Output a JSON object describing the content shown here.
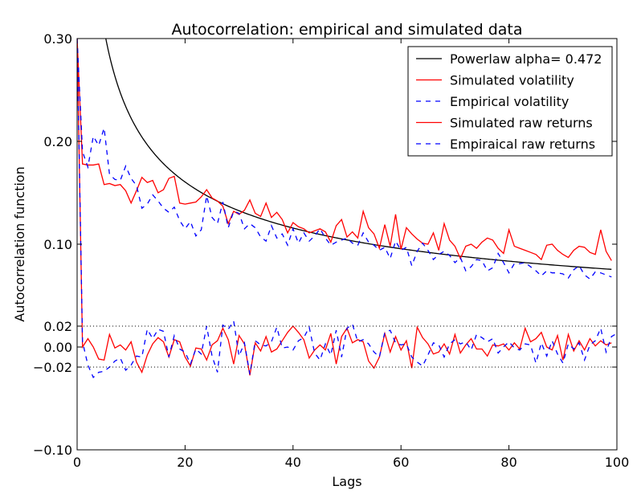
{
  "chart_data": {
    "type": "line",
    "title": "Autocorrelation: empirical and simulated data",
    "xlabel": "Lags",
    "ylabel": "Autocorrelation function",
    "xlim": [
      0,
      100
    ],
    "ylim": [
      -0.1,
      0.3
    ],
    "xticks": [
      0,
      20,
      40,
      60,
      80,
      100
    ],
    "xtick_labels": [
      "0",
      "20",
      "40",
      "60",
      "80",
      "100"
    ],
    "yticks": [
      -0.1,
      -0.02,
      0.0,
      0.02,
      0.1,
      0.2,
      0.3
    ],
    "ytick_labels": [
      "−0.10",
      "−0.02",
      "0.00",
      "0.02",
      "0.10",
      "0.20",
      "0.30"
    ],
    "legend_position": "top-right",
    "reference_lines": [
      0.02,
      -0.02
    ],
    "powerlaw": {
      "alpha": 0.472,
      "coef": 0.66
    },
    "series": [
      {
        "name": "Powerlaw alpha= 0.472",
        "kind": "powerlaw",
        "color": "#000000",
        "dash": "solid"
      },
      {
        "name": "Simulated volatility",
        "color": "#ff0000",
        "dash": "solid",
        "x_start": 0,
        "values": [
          0.3,
          0.178,
          0.177,
          0.177,
          0.178,
          0.158,
          0.159,
          0.157,
          0.158,
          0.152,
          0.14,
          0.152,
          0.165,
          0.16,
          0.162,
          0.15,
          0.153,
          0.164,
          0.166,
          0.14,
          0.139,
          0.14,
          0.141,
          0.146,
          0.153,
          0.145,
          0.142,
          0.137,
          0.12,
          0.132,
          0.129,
          0.133,
          0.143,
          0.13,
          0.127,
          0.14,
          0.126,
          0.131,
          0.124,
          0.111,
          0.121,
          0.117,
          0.115,
          0.111,
          0.113,
          0.115,
          0.112,
          0.102,
          0.118,
          0.124,
          0.107,
          0.112,
          0.106,
          0.132,
          0.116,
          0.11,
          0.096,
          0.119,
          0.098,
          0.129,
          0.095,
          0.116,
          0.11,
          0.105,
          0.101,
          0.1,
          0.111,
          0.094,
          0.12,
          0.104,
          0.098,
          0.086,
          0.098,
          0.1,
          0.096,
          0.102,
          0.106,
          0.104,
          0.096,
          0.091,
          0.114,
          0.098,
          0.096,
          0.094,
          0.092,
          0.09,
          0.085,
          0.099,
          0.1,
          0.094,
          0.09,
          0.087,
          0.094,
          0.098,
          0.097,
          0.092,
          0.09,
          0.114,
          0.093,
          0.084
        ]
      },
      {
        "name": "Empirical volatility",
        "color": "#0000ff",
        "dash": "dashed",
        "x_start": 0,
        "values": [
          0.3,
          0.19,
          0.175,
          0.205,
          0.196,
          0.213,
          0.168,
          0.163,
          0.162,
          0.176,
          0.164,
          0.157,
          0.135,
          0.139,
          0.148,
          0.142,
          0.135,
          0.131,
          0.136,
          0.123,
          0.115,
          0.122,
          0.108,
          0.114,
          0.147,
          0.126,
          0.12,
          0.141,
          0.116,
          0.132,
          0.13,
          0.115,
          0.12,
          0.116,
          0.107,
          0.103,
          0.118,
          0.106,
          0.11,
          0.099,
          0.115,
          0.101,
          0.111,
          0.103,
          0.108,
          0.115,
          0.106,
          0.099,
          0.102,
          0.104,
          0.106,
          0.101,
          0.099,
          0.111,
          0.102,
          0.099,
          0.094,
          0.097,
          0.086,
          0.103,
          0.094,
          0.097,
          0.079,
          0.093,
          0.101,
          0.094,
          0.085,
          0.09,
          0.093,
          0.089,
          0.082,
          0.087,
          0.074,
          0.078,
          0.085,
          0.084,
          0.074,
          0.077,
          0.091,
          0.082,
          0.072,
          0.081,
          0.081,
          0.082,
          0.078,
          0.074,
          0.069,
          0.074,
          0.072,
          0.072,
          0.071,
          0.067,
          0.075,
          0.079,
          0.07,
          0.066,
          0.073,
          0.072,
          0.07,
          0.068
        ]
      },
      {
        "name": "Simulated raw returns",
        "color": "#ff0000",
        "dash": "solid",
        "x_start": 0,
        "values": [
          0.3,
          0.0,
          0.008,
          0.0,
          -0.012,
          -0.013,
          0.012,
          -0.001,
          0.002,
          -0.003,
          0.005,
          -0.015,
          -0.025,
          -0.008,
          0.003,
          0.009,
          0.005,
          -0.01,
          0.007,
          0.005,
          -0.01,
          -0.019,
          -0.001,
          -0.002,
          -0.013,
          0.002,
          0.006,
          0.018,
          0.007,
          -0.017,
          0.011,
          0.003,
          -0.028,
          0.004,
          -0.004,
          0.01,
          -0.005,
          -0.002,
          0.006,
          0.014,
          0.02,
          0.014,
          0.007,
          -0.011,
          -0.003,
          0.002,
          -0.003,
          0.013,
          -0.017,
          0.01,
          0.018,
          0.004,
          0.007,
          0.005,
          -0.014,
          -0.021,
          -0.01,
          0.013,
          -0.005,
          0.01,
          -0.003,
          0.006,
          -0.021,
          0.019,
          0.009,
          0.003,
          -0.007,
          -0.005,
          0.003,
          -0.007,
          0.012,
          -0.006,
          0.002,
          0.008,
          -0.002,
          -0.002,
          -0.009,
          0.002,
          0.001,
          0.003,
          -0.003,
          0.004,
          -0.002,
          0.018,
          0.005,
          0.008,
          0.014,
          0.0,
          -0.003,
          0.011,
          -0.013,
          0.012,
          -0.004,
          0.006,
          -0.003,
          0.008,
          0.001,
          0.006,
          0.002,
          0.004
        ]
      },
      {
        "name": "Empiraical raw returns",
        "color": "#0000ff",
        "dash": "dashed",
        "x_start": 0,
        "values": [
          0.3,
          0.005,
          -0.018,
          -0.03,
          -0.025,
          -0.024,
          -0.02,
          -0.014,
          -0.011,
          -0.023,
          -0.018,
          -0.009,
          -0.01,
          0.017,
          0.008,
          0.017,
          0.015,
          -0.01,
          0.011,
          -0.002,
          -0.005,
          -0.017,
          -0.002,
          -0.007,
          0.02,
          -0.009,
          -0.025,
          0.021,
          0.017,
          0.025,
          -0.009,
          0.004,
          -0.027,
          0.006,
          0.002,
          0.001,
          0.005,
          0.019,
          -0.001,
          0.0,
          -0.003,
          0.006,
          0.009,
          0.019,
          -0.006,
          -0.013,
          0.003,
          -0.008,
          0.016,
          -0.01,
          0.018,
          0.022,
          0.005,
          0.007,
          0.003,
          -0.005,
          -0.01,
          0.014,
          0.016,
          0.004,
          0.002,
          0.003,
          -0.01,
          -0.015,
          -0.019,
          -0.008,
          0.004,
          0.002,
          -0.01,
          0.003,
          0.007,
          0.003,
          0.005,
          -0.003,
          0.012,
          0.009,
          0.005,
          0.008,
          -0.006,
          0.0,
          0.005,
          -0.001,
          -0.003,
          0.003,
          0.002,
          -0.016,
          0.004,
          -0.009,
          0.006,
          -0.007,
          -0.016,
          0.003,
          -0.002,
          0.004,
          -0.013,
          0.002,
          0.006,
          0.018,
          -0.005,
          0.01,
          0.013
        ]
      }
    ]
  }
}
